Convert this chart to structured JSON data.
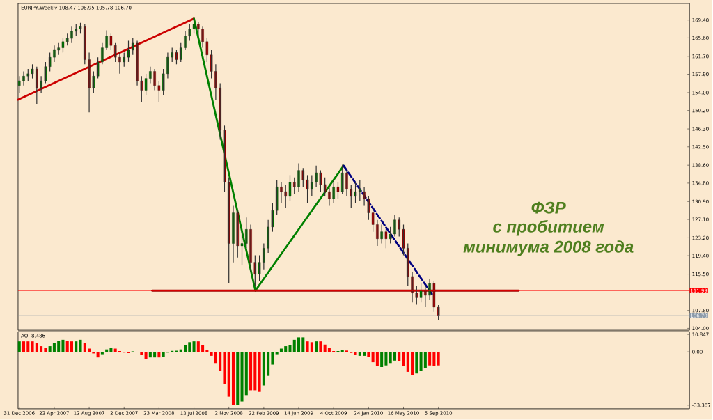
{
  "chart_data": [
    {
      "type": "candlestick",
      "title": "EURJPY,Weekly  108.47 108.95 105.78 106.70",
      "x": [
        "2006-12-31",
        "2007-01-14",
        "2007-01-28",
        "2007-02-11",
        "2007-02-25",
        "2007-03-11",
        "2007-03-25",
        "2007-04-08",
        "2007-04-22",
        "2007-05-06",
        "2007-05-20",
        "2007-06-03",
        "2007-06-17",
        "2007-07-01",
        "2007-07-15",
        "2007-07-29",
        "2007-08-12",
        "2007-08-26",
        "2007-09-09",
        "2007-09-23",
        "2007-10-07",
        "2007-10-21",
        "2007-11-04",
        "2007-11-18",
        "2007-12-02",
        "2007-12-16",
        "2007-12-30",
        "2008-01-13",
        "2008-01-27",
        "2008-02-10",
        "2008-02-24",
        "2008-03-09",
        "2008-03-23",
        "2008-04-06",
        "2008-04-20",
        "2008-05-04",
        "2008-05-18",
        "2008-06-01",
        "2008-06-15",
        "2008-06-29",
        "2008-07-13",
        "2008-07-27",
        "2008-08-10",
        "2008-08-24",
        "2008-09-07",
        "2008-09-21",
        "2008-10-05",
        "2008-10-19",
        "2008-11-02",
        "2008-11-16",
        "2008-11-30",
        "2008-12-14",
        "2008-12-28",
        "2009-01-11",
        "2009-01-25",
        "2009-02-08",
        "2009-02-22",
        "2009-03-08",
        "2009-03-22",
        "2009-04-05",
        "2009-04-19",
        "2009-05-03",
        "2009-05-17",
        "2009-05-31",
        "2009-06-14",
        "2009-06-28",
        "2009-07-12",
        "2009-07-26",
        "2009-08-09",
        "2009-08-23",
        "2009-09-06",
        "2009-09-20",
        "2009-10-04",
        "2009-10-18",
        "2009-11-01",
        "2009-11-15",
        "2009-11-29",
        "2009-12-13",
        "2009-12-27",
        "2010-01-10",
        "2010-01-24",
        "2010-02-07",
        "2010-02-21",
        "2010-03-07",
        "2010-03-21",
        "2010-04-04",
        "2010-04-18",
        "2010-05-02",
        "2010-05-16",
        "2010-05-30",
        "2010-06-13",
        "2010-06-27",
        "2010-07-11",
        "2010-07-25",
        "2010-08-08",
        "2010-08-22",
        "2010-09-05"
      ],
      "ohlc": [
        [
          155.5,
          157.5,
          154.0,
          156.5
        ],
        [
          156.5,
          158.5,
          155.5,
          157.5
        ],
        [
          157.5,
          159.0,
          156.5,
          158.0
        ],
        [
          158.0,
          160.0,
          157.0,
          159.0
        ],
        [
          159.0,
          159.5,
          151.5,
          155.0
        ],
        [
          155.0,
          157.5,
          154.0,
          156.5
        ],
        [
          156.5,
          160.5,
          156.0,
          159.5
        ],
        [
          159.5,
          162.5,
          158.5,
          161.5
        ],
        [
          161.5,
          164.0,
          160.5,
          163.0
        ],
        [
          163.0,
          164.5,
          162.0,
          163.5
        ],
        [
          163.5,
          165.5,
          162.5,
          164.8
        ],
        [
          164.8,
          166.5,
          164.0,
          165.5
        ],
        [
          165.5,
          168.0,
          164.5,
          167.0
        ],
        [
          167.0,
          168.5,
          166.0,
          167.5
        ],
        [
          167.5,
          168.8,
          166.5,
          168.0
        ],
        [
          168.0,
          168.5,
          160.0,
          161.0
        ],
        [
          161.0,
          162.5,
          149.8,
          155.0
        ],
        [
          155.0,
          158.5,
          154.0,
          157.5
        ],
        [
          157.5,
          161.5,
          157.0,
          160.5
        ],
        [
          160.5,
          164.5,
          160.0,
          163.5
        ],
        [
          163.5,
          167.2,
          163.0,
          166.0
        ],
        [
          166.0,
          166.5,
          163.0,
          164.0
        ],
        [
          164.0,
          164.5,
          160.5,
          161.5
        ],
        [
          161.5,
          162.5,
          158.0,
          160.5
        ],
        [
          160.5,
          162.5,
          159.5,
          161.5
        ],
        [
          161.5,
          165.0,
          160.5,
          163.0
        ],
        [
          163.0,
          165.5,
          162.0,
          164.5
        ],
        [
          164.5,
          165.0,
          155.5,
          156.5
        ],
        [
          156.5,
          157.5,
          152.0,
          154.5
        ],
        [
          154.5,
          158.0,
          153.5,
          157.0
        ],
        [
          157.0,
          159.5,
          156.0,
          158.5
        ],
        [
          158.5,
          159.0,
          154.5,
          155.5
        ],
        [
          155.5,
          156.5,
          152.0,
          154.5
        ],
        [
          154.5,
          159.0,
          153.5,
          158.0
        ],
        [
          158.0,
          162.5,
          157.0,
          161.5
        ],
        [
          161.5,
          163.5,
          160.5,
          162.5
        ],
        [
          162.5,
          163.0,
          160.0,
          161.0
        ],
        [
          161.0,
          164.5,
          160.5,
          163.5
        ],
        [
          163.5,
          167.0,
          163.0,
          166.0
        ],
        [
          166.0,
          168.5,
          165.0,
          167.5
        ],
        [
          167.5,
          169.8,
          166.5,
          168.5
        ],
        [
          168.5,
          169.0,
          166.0,
          167.5
        ],
        [
          167.5,
          168.0,
          163.5,
          164.8
        ],
        [
          164.8,
          165.5,
          160.5,
          162.0
        ],
        [
          162.0,
          163.0,
          157.0,
          158.5
        ],
        [
          158.5,
          160.0,
          152.5,
          155.0
        ],
        [
          155.0,
          156.0,
          144.0,
          146.0
        ],
        [
          146.0,
          147.0,
          133.0,
          135.0
        ],
        [
          135.0,
          136.0,
          113.5,
          122.0
        ],
        [
          122.0,
          130.0,
          118.0,
          128.5
        ],
        [
          128.5,
          129.0,
          119.0,
          121.5
        ],
        [
          121.5,
          124.5,
          117.5,
          122.0
        ],
        [
          122.0,
          127.5,
          121.0,
          125.0
        ],
        [
          125.0,
          126.0,
          116.0,
          118.0
        ],
        [
          118.0,
          119.5,
          113.0,
          115.5
        ],
        [
          115.5,
          119.5,
          114.0,
          118.0
        ],
        [
          118.0,
          122.0,
          116.5,
          121.0
        ],
        [
          121.0,
          127.0,
          120.0,
          125.5
        ],
        [
          125.5,
          130.5,
          124.5,
          129.0
        ],
        [
          129.0,
          135.5,
          128.0,
          134.0
        ],
        [
          134.0,
          135.0,
          130.5,
          133.0
        ],
        [
          133.0,
          134.5,
          129.5,
          132.0
        ],
        [
          132.0,
          136.5,
          131.0,
          135.0
        ],
        [
          135.0,
          136.0,
          132.5,
          134.0
        ],
        [
          134.0,
          139.0,
          133.0,
          137.5
        ],
        [
          137.5,
          138.0,
          134.0,
          135.5
        ],
        [
          135.5,
          136.5,
          130.5,
          133.5
        ],
        [
          133.5,
          136.5,
          132.0,
          135.0
        ],
        [
          135.0,
          138.5,
          134.0,
          137.0
        ],
        [
          137.0,
          137.5,
          133.0,
          134.5
        ],
        [
          134.5,
          136.0,
          132.0,
          133.0
        ],
        [
          133.0,
          134.0,
          130.0,
          131.5
        ],
        [
          131.5,
          135.5,
          130.5,
          134.0
        ],
        [
          134.0,
          135.0,
          131.5,
          133.0
        ],
        [
          133.0,
          138.7,
          132.5,
          137.0
        ],
        [
          137.0,
          137.5,
          132.0,
          133.5
        ],
        [
          133.5,
          134.5,
          129.5,
          132.0
        ],
        [
          132.0,
          135.0,
          130.5,
          133.0
        ],
        [
          133.0,
          135.5,
          131.0,
          133.5
        ],
        [
          133.0,
          134.0,
          130.0,
          131.5
        ],
        [
          131.5,
          132.0,
          127.0,
          128.5
        ],
        [
          128.5,
          129.5,
          124.5,
          126.0
        ],
        [
          126.0,
          127.0,
          121.5,
          123.0
        ],
        [
          123.0,
          126.0,
          122.0,
          124.5
        ],
        [
          124.5,
          125.5,
          121.0,
          123.0
        ],
        [
          123.0,
          125.5,
          122.0,
          124.0
        ],
        [
          124.0,
          128.0,
          123.5,
          127.0
        ],
        [
          127.0,
          127.5,
          123.5,
          125.0
        ],
        [
          125.0,
          126.0,
          119.5,
          121.0
        ],
        [
          121.0,
          122.0,
          113.0,
          115.0
        ],
        [
          115.0,
          116.0,
          109.5,
          111.5
        ],
        [
          111.5,
          113.0,
          109.0,
          110.5
        ],
        [
          110.5,
          113.5,
          109.5,
          112.0
        ],
        [
          112.0,
          113.0,
          108.5,
          111.0
        ],
        [
          111.0,
          114.5,
          110.0,
          113.5
        ],
        [
          113.5,
          114.0,
          107.5,
          108.5
        ],
        [
          108.47,
          108.95,
          105.78,
          106.7
        ]
      ],
      "colors": [
        "#008000",
        "#008000",
        "#008000",
        "#008000",
        "#b00000",
        "#008000",
        "#008000",
        "#008000",
        "#008000",
        "#008000",
        "#008000",
        "#008000",
        "#008000",
        "#008000",
        "#008000",
        "#b00000",
        "#b00000",
        "#008000",
        "#008000",
        "#008000",
        "#008000",
        "#b00000",
        "#b00000",
        "#b00000",
        "#008000",
        "#008000",
        "#008000",
        "#b00000",
        "#b00000",
        "#008000",
        "#008000",
        "#b00000",
        "#b00000",
        "#008000",
        "#008000",
        "#008000",
        "#b00000",
        "#008000",
        "#008000",
        "#008000",
        "#008000",
        "#b00000",
        "#b00000",
        "#b00000",
        "#b00000",
        "#b00000",
        "#b00000",
        "#b00000",
        "#b00000",
        "#008000",
        "#b00000",
        "#008000",
        "#008000",
        "#b00000",
        "#b00000",
        "#008000",
        "#008000",
        "#008000",
        "#008000",
        "#008000",
        "#b00000",
        "#b00000",
        "#008000",
        "#b00000",
        "#008000",
        "#b00000",
        "#b00000",
        "#008000",
        "#008000",
        "#b00000",
        "#b00000",
        "#b00000",
        "#008000",
        "#b00000",
        "#008000",
        "#b00000",
        "#b00000",
        "#008000",
        "#008000",
        "#b00000",
        "#b00000",
        "#b00000",
        "#b00000",
        "#008000",
        "#b00000",
        "#008000",
        "#008000",
        "#b00000",
        "#b00000",
        "#b00000",
        "#b00000",
        "#b00000",
        "#008000",
        "#b00000",
        "#008000",
        "#b00000",
        "#b00000"
      ],
      "series": [
        {
          "type": "line",
          "color": "#cc0000",
          "x": [
            "2006-12-27",
            "2008-07-13"
          ],
          "values": [
            152.5,
            169.7
          ]
        },
        {
          "type": "line",
          "color": "#008000",
          "x": [
            "2008-07-13",
            "2009-01-26",
            "2009-11-05"
          ],
          "values": [
            169.7,
            112.0,
            138.5
          ]
        },
        {
          "type": "line",
          "color": "#000080",
          "line_style": "dashed",
          "x": [
            "2009-11-05",
            "2010-08-19"
          ],
          "values": [
            138.5,
            110.9
          ]
        },
        {
          "type": "line",
          "color": "#a00000",
          "x": [
            "2008-03-01",
            "2011-05-20"
          ],
          "values": [
            112.0,
            112.0
          ]
        }
      ],
      "ref_lines": [
        {
          "axis": "y",
          "value": 111.99,
          "label": "111.99",
          "color": "#ff0000"
        },
        {
          "axis": "y",
          "value": 106.7,
          "label": "106.70",
          "color": "#8c9aa8"
        }
      ],
      "annotations": [
        "ФЗР",
        "с пробитием",
        "минимума 2008 года"
      ],
      "xlim": [
        "2006-12-27",
        "2012-11-18"
      ],
      "ylim": [
        103.6,
        172.9
      ],
      "yticks": [
        {
          "value": 104.0,
          "label": "104.00"
        },
        {
          "value": 107.8,
          "label": "107.80"
        },
        {
          "value": 115.5,
          "label": "115.50"
        },
        {
          "value": 119.4,
          "label": "119.40"
        },
        {
          "value": 123.2,
          "label": "123.20"
        },
        {
          "value": 127.1,
          "label": "127.10"
        },
        {
          "value": 130.9,
          "label": "130.90"
        },
        {
          "value": 134.8,
          "label": "134.80"
        },
        {
          "value": 138.6,
          "label": "138.60"
        },
        {
          "value": 142.5,
          "label": "142.50"
        },
        {
          "value": 146.3,
          "label": "146.30"
        },
        {
          "value": 150.2,
          "label": "150.20"
        },
        {
          "value": 154.0,
          "label": "154.00"
        },
        {
          "value": 157.9,
          "label": "157.90"
        },
        {
          "value": 161.7,
          "label": "161.70"
        },
        {
          "value": 165.6,
          "label": "165.60"
        },
        {
          "value": 169.4,
          "label": "169.40"
        }
      ],
      "tick_labels": "y"
    },
    {
      "type": "bar",
      "title": "AO -8.486",
      "x": [
        "2006-12-31",
        "2007-01-14",
        "2007-01-28",
        "2007-02-11",
        "2007-02-25",
        "2007-03-11",
        "2007-03-25",
        "2007-04-08",
        "2007-04-22",
        "2007-05-06",
        "2007-05-20",
        "2007-06-03",
        "2007-06-17",
        "2007-07-01",
        "2007-07-15",
        "2007-07-29",
        "2007-08-12",
        "2007-08-26",
        "2007-09-09",
        "2007-09-23",
        "2007-10-07",
        "2007-10-21",
        "2007-11-04",
        "2007-11-18",
        "2007-12-02",
        "2007-12-16",
        "2007-12-30",
        "2008-01-13",
        "2008-01-27",
        "2008-02-10",
        "2008-02-24",
        "2008-03-09",
        "2008-03-23",
        "2008-04-06",
        "2008-04-20",
        "2008-05-04",
        "2008-05-18",
        "2008-06-01",
        "2008-06-15",
        "2008-06-29",
        "2008-07-13",
        "2008-07-27",
        "2008-08-10",
        "2008-08-24",
        "2008-09-07",
        "2008-09-21",
        "2008-10-05",
        "2008-10-19",
        "2008-11-02",
        "2008-11-16",
        "2008-11-30",
        "2008-12-14",
        "2008-12-28",
        "2009-01-11",
        "2009-01-25",
        "2009-02-08",
        "2009-02-22",
        "2009-03-08",
        "2009-03-22",
        "2009-04-05",
        "2009-04-19",
        "2009-05-03",
        "2009-05-17",
        "2009-05-31",
        "2009-06-14",
        "2009-06-28",
        "2009-07-12",
        "2009-07-26",
        "2009-08-09",
        "2009-08-23",
        "2009-09-06",
        "2009-09-20",
        "2009-10-04",
        "2009-10-18",
        "2009-11-01",
        "2009-11-15",
        "2009-11-29",
        "2009-12-13",
        "2009-12-27",
        "2010-01-10",
        "2010-01-24",
        "2010-02-07",
        "2010-02-21",
        "2010-03-07",
        "2010-03-21",
        "2010-04-04",
        "2010-04-18",
        "2010-05-02",
        "2010-05-16",
        "2010-05-30",
        "2010-06-13",
        "2010-06-27",
        "2010-07-11",
        "2010-07-25",
        "2010-08-08",
        "2010-08-22",
        "2010-09-05"
      ],
      "values": [
        6.5,
        6.5,
        6.5,
        6.5,
        5.5,
        3.5,
        2.5,
        3.5,
        5.5,
        7.0,
        7.5,
        7.0,
        6.5,
        6.5,
        7.5,
        5.5,
        2.0,
        -1.0,
        -3.5,
        -1.5,
        1.5,
        2.5,
        2.0,
        0.5,
        -0.5,
        -0.8,
        0.3,
        -0.3,
        -2.0,
        -4.5,
        -3.5,
        -3.5,
        -3.5,
        -3.0,
        -0.5,
        0.6,
        0.7,
        1.5,
        4.0,
        6.0,
        6.5,
        6.5,
        4.0,
        1.0,
        -2.5,
        -7.0,
        -12.0,
        -20.0,
        -28.0,
        -33.0,
        -33.0,
        -31.0,
        -27.0,
        -24.0,
        -24.0,
        -25.0,
        -21.0,
        -15.0,
        -8.0,
        -1.5,
        2.0,
        3.5,
        4.0,
        7.5,
        9.0,
        9.0,
        6.5,
        6.0,
        6.5,
        6.5,
        4.5,
        2.5,
        0.5,
        0.5,
        1.0,
        0.8,
        -0.7,
        -1.8,
        -2.5,
        -2.5,
        -3.0,
        -6.5,
        -9.0,
        -9.5,
        -8.5,
        -7.0,
        -5.5,
        -6.0,
        -9.0,
        -12.5,
        -14.5,
        -13.5,
        -12.0,
        -10.0,
        -8.5,
        -9.0,
        -8.5
      ],
      "colors": [
        "#008000",
        "#ff0000",
        "#ff0000",
        "#ff0000",
        "#ff0000",
        "#ff0000",
        "#ff0000",
        "#008000",
        "#008000",
        "#008000",
        "#008000",
        "#ff0000",
        "#ff0000",
        "#008000",
        "#008000",
        "#ff0000",
        "#ff0000",
        "#ff0000",
        "#ff0000",
        "#008000",
        "#008000",
        "#008000",
        "#ff0000",
        "#ff0000",
        "#ff0000",
        "#ff0000",
        "#008000",
        "#ff0000",
        "#ff0000",
        "#ff0000",
        "#008000",
        "#008000",
        "#ff0000",
        "#008000",
        "#008000",
        "#008000",
        "#008000",
        "#008000",
        "#008000",
        "#008000",
        "#008000",
        "#ff0000",
        "#ff0000",
        "#ff0000",
        "#ff0000",
        "#ff0000",
        "#ff0000",
        "#ff0000",
        "#ff0000",
        "#ff0000",
        "#008000",
        "#008000",
        "#008000",
        "#ff0000",
        "#ff0000",
        "#ff0000",
        "#008000",
        "#008000",
        "#008000",
        "#008000",
        "#008000",
        "#008000",
        "#008000",
        "#008000",
        "#008000",
        "#008000",
        "#ff0000",
        "#ff0000",
        "#008000",
        "#ff0000",
        "#ff0000",
        "#ff0000",
        "#ff0000",
        "#008000",
        "#008000",
        "#ff0000",
        "#ff0000",
        "#ff0000",
        "#008000",
        "#008000",
        "#ff0000",
        "#ff0000",
        "#ff0000",
        "#008000",
        "#008000",
        "#008000",
        "#008000",
        "#ff0000",
        "#ff0000",
        "#ff0000",
        "#ff0000",
        "#008000",
        "#008000",
        "#008000",
        "#ff0000",
        "#ff0000",
        "#ff0000"
      ],
      "xlim": [
        "2006-12-27",
        "2012-11-18"
      ],
      "ylim": [
        -35.5,
        12.6
      ],
      "yticks": [
        10.847,
        {
          "value": 0,
          "label": "0.00"
        },
        -33.307
      ],
      "xticks": [
        {
          "value": "2006-12-31",
          "label": "31 Dec 2006"
        },
        {
          "value": "2007-04-22",
          "label": "22 Apr 2007"
        },
        {
          "value": "2007-08-12",
          "label": "12 Aug 2007"
        },
        {
          "value": "2007-12-02",
          "label": "2 Dec 2007"
        },
        {
          "value": "2008-03-23",
          "label": "23 Mar 2008"
        },
        {
          "value": "2008-07-13",
          "label": "13 Jul 2008"
        },
        {
          "value": "2008-11-02",
          "label": "2 Nov 2008"
        },
        {
          "value": "2009-02-22",
          "label": "22 Feb 2009"
        },
        {
          "value": "2009-06-14",
          "label": "14 Jun 2009"
        },
        {
          "value": "2009-10-04",
          "label": "4 Oct 2009"
        },
        {
          "value": "2010-01-24",
          "label": "24 Jan 2010"
        },
        {
          "value": "2010-05-16",
          "label": "16 May 2010"
        },
        {
          "value": "2010-09-05",
          "label": "5 Sep 2010"
        }
      ]
    }
  ]
}
